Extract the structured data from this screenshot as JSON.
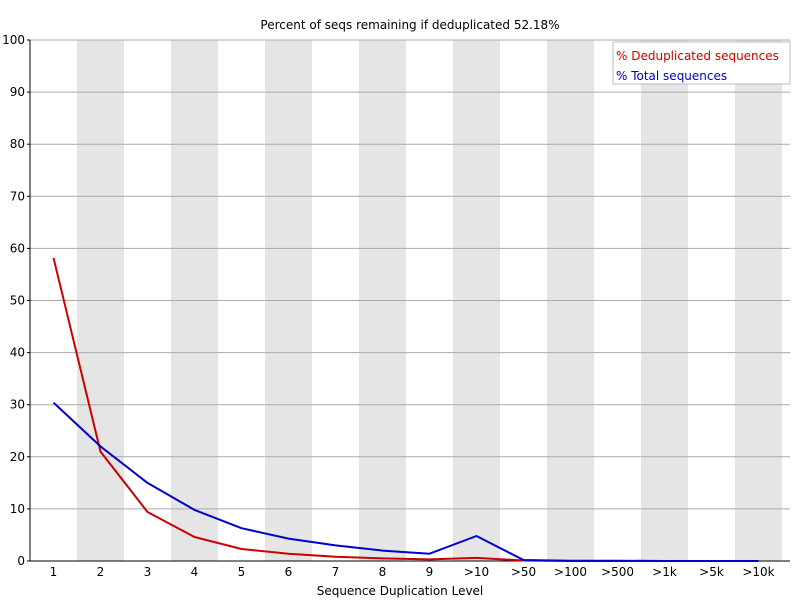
{
  "chart_data": {
    "type": "line",
    "title": "Percent of seqs remaining if deduplicated 52.18%",
    "xlabel": "Sequence Duplication Level",
    "ylabel": "",
    "ylim": [
      0,
      100
    ],
    "yticks": [
      0,
      10,
      20,
      30,
      40,
      50,
      60,
      70,
      80,
      90,
      100
    ],
    "categories": [
      "1",
      "2",
      "3",
      "4",
      "5",
      "6",
      "7",
      "8",
      "9",
      ">10",
      ">50",
      ">100",
      ">500",
      ">1k",
      ">5k",
      ">10k"
    ],
    "grid": true,
    "legend_position": "top-right",
    "alternating_band_color": "#e5e5e5",
    "series": [
      {
        "name": "% Deduplicated sequences",
        "color": "#cc0000",
        "values": [
          58.2,
          21.0,
          9.4,
          4.6,
          2.3,
          1.4,
          0.8,
          0.5,
          0.3,
          0.6,
          0.1,
          0.0,
          0.0,
          0.0,
          0.0,
          0.0
        ]
      },
      {
        "name": "% Total sequences",
        "color": "#0000cc",
        "values": [
          30.4,
          22.0,
          15.0,
          9.8,
          6.3,
          4.3,
          3.0,
          2.0,
          1.4,
          4.8,
          0.2,
          0.05,
          0.05,
          0.0,
          0.0,
          0.0
        ]
      }
    ]
  }
}
